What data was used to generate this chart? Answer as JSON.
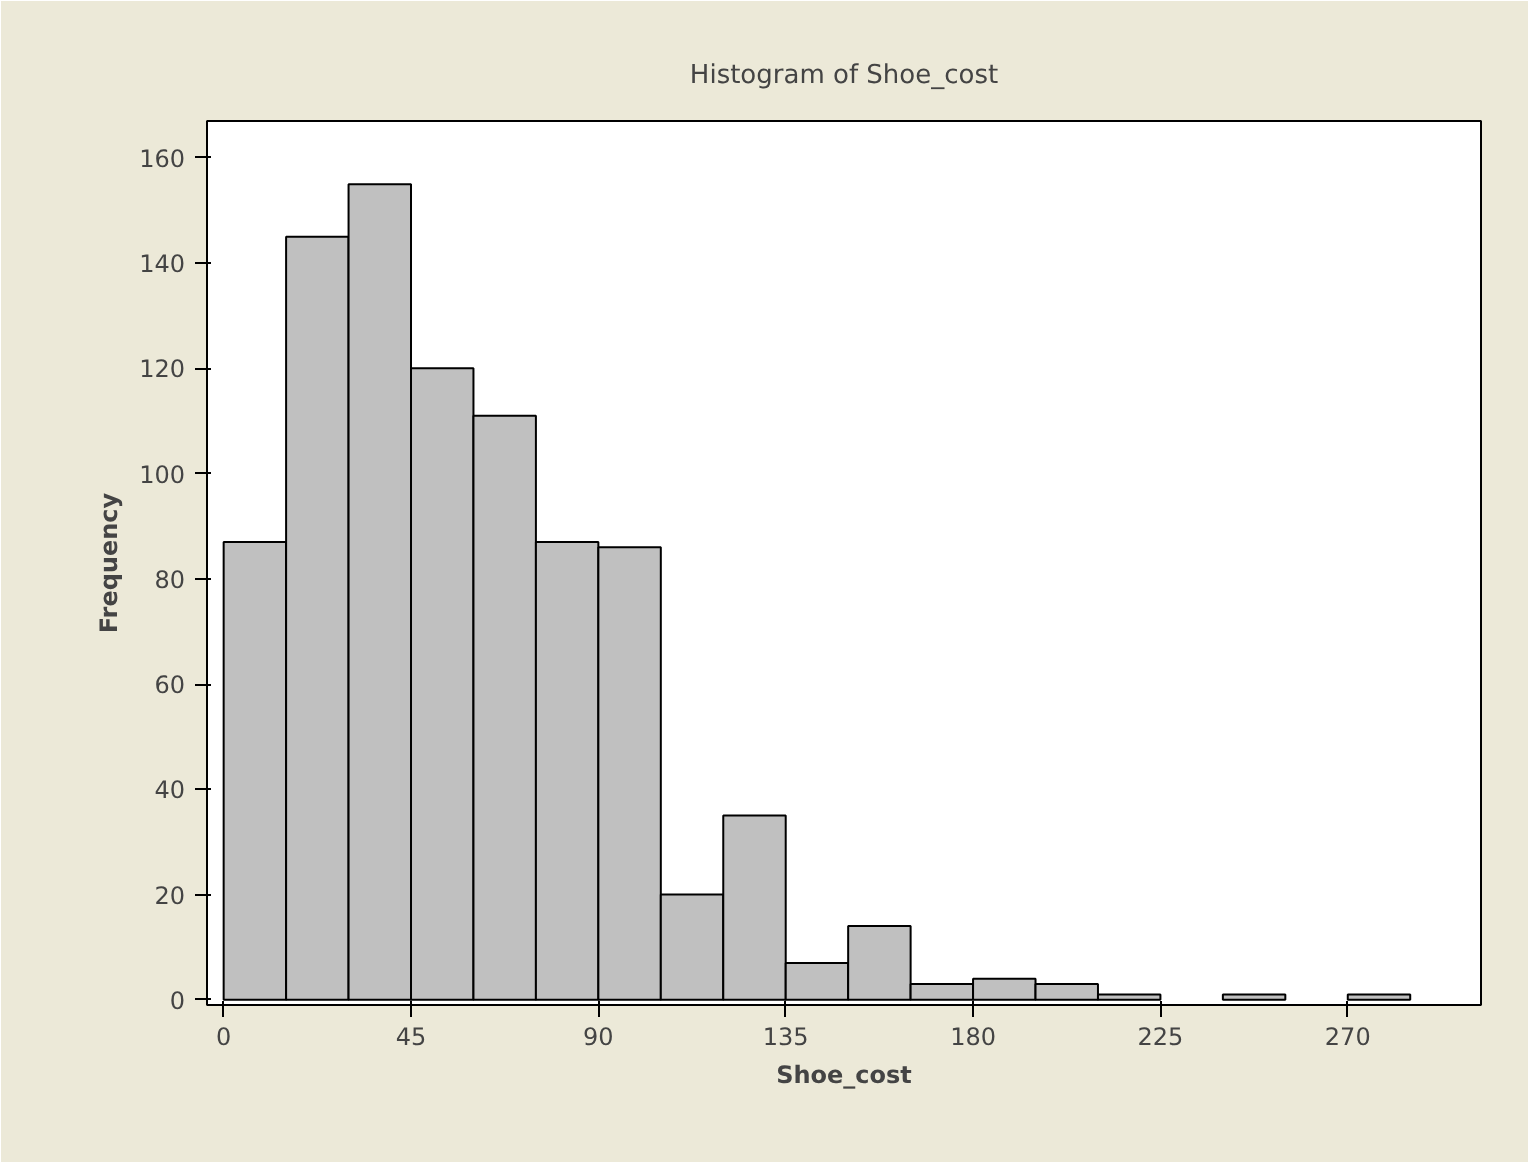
{
  "chart_data": {
    "type": "histogram",
    "title": "Histogram of Shoe_cost",
    "xlabel": "Shoe_cost",
    "ylabel": "Frequency",
    "bins": [
      0,
      15,
      30,
      45,
      60,
      75,
      90,
      105,
      120,
      135,
      150,
      165,
      180,
      195,
      210,
      225,
      240,
      255,
      270,
      285
    ],
    "values": [
      87,
      145,
      155,
      120,
      111,
      87,
      86,
      20,
      35,
      7,
      14,
      3,
      4,
      3,
      1,
      0,
      1,
      0,
      1
    ],
    "color": "#c0c0c0",
    "xlim": [
      -4,
      302
    ],
    "ylim": [
      -1,
      167
    ],
    "xticks": [
      0,
      45,
      90,
      135,
      180,
      225,
      270
    ],
    "yticks": [
      0,
      20,
      40,
      60,
      80,
      100,
      120,
      140,
      160
    ],
    "grid": false
  }
}
